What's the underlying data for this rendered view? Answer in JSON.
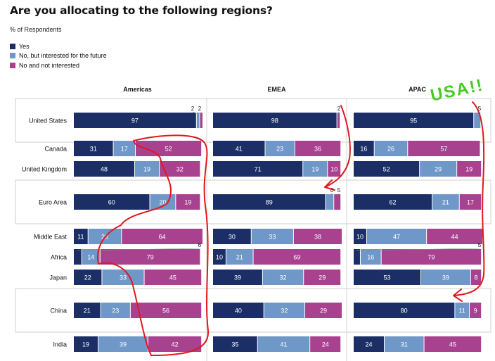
{
  "chart_data": {
    "type": "bar",
    "stacked": true,
    "orientation": "horizontal",
    "title": "Are you allocating to the following regions?",
    "subtitle": "% of Respondents",
    "legend_placement": "top-left",
    "panels": [
      "Americas",
      "EMEA",
      "APAC"
    ],
    "categories": [
      "United States",
      "Canada",
      "United Kingdom",
      "Euro Area",
      "Middle East",
      "Africa",
      "Japan",
      "China",
      "India"
    ],
    "highlighted_categories": [
      "United States",
      "Euro Area",
      "China"
    ],
    "series": [
      {
        "name": "Yes",
        "color": "#1b2f66",
        "values": {
          "Americas": [
            97,
            31,
            48,
            60,
            11,
            6,
            22,
            21,
            19
          ],
          "EMEA": [
            98,
            41,
            71,
            89,
            30,
            10,
            39,
            40,
            35
          ],
          "APAC": [
            95,
            16,
            52,
            62,
            10,
            5,
            53,
            80,
            24
          ]
        }
      },
      {
        "name": "No, but interested for the future",
        "color": "#6f97c8",
        "values": {
          "Americas": [
            2,
            17,
            19,
            20,
            26,
            14,
            33,
            23,
            39
          ],
          "EMEA": [
            0,
            23,
            19,
            6,
            33,
            21,
            32,
            32,
            41
          ],
          "APAC": [
            5,
            26,
            29,
            21,
            47,
            16,
            39,
            11,
            31
          ]
        }
      },
      {
        "name": "No and not interested",
        "color": "#a8428f",
        "values": {
          "Americas": [
            2,
            52,
            32,
            19,
            64,
            79,
            45,
            56,
            42
          ],
          "EMEA": [
            2,
            36,
            10,
            5,
            38,
            69,
            29,
            29,
            24
          ],
          "APAC": [
            0,
            57,
            19,
            17,
            44,
            79,
            8,
            9,
            45
          ]
        }
      }
    ],
    "xlim": [
      0,
      100
    ],
    "annotations": [
      {
        "text": "USA!!",
        "color": "#44cc22",
        "kind": "handwritten"
      }
    ]
  }
}
